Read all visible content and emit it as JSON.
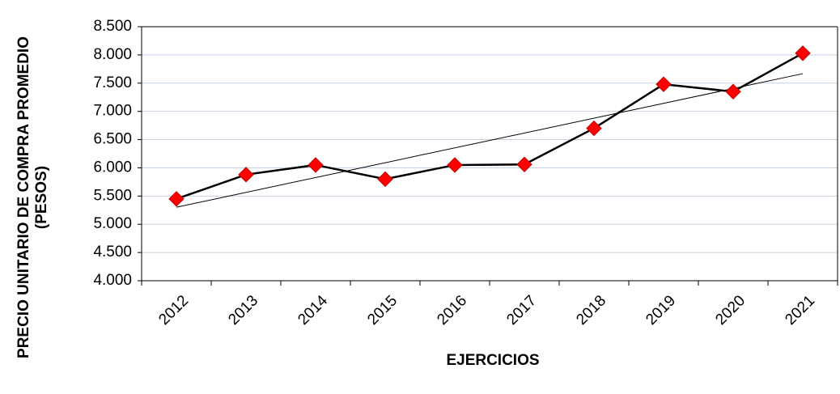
{
  "chart_data": {
    "type": "line",
    "categories": [
      "2012",
      "2013",
      "2014",
      "2015",
      "2016",
      "2017",
      "2018",
      "2019",
      "2020",
      "2021"
    ],
    "values": [
      5450,
      5880,
      6050,
      5800,
      6050,
      6060,
      6700,
      7480,
      7350,
      8030
    ],
    "color": "#000000",
    "marker_color": "#ff0000",
    "trendline": "linear",
    "x_label": "EJERCICIOS",
    "y_label": [
      "PRECIO UNITARIO DE COMPRA PROMEDIO",
      "(PESOS)"
    ],
    "ylim": [
      4000,
      8500
    ],
    "yticks": [
      {
        "value": 4000,
        "label": "4.000"
      },
      {
        "value": 4500,
        "label": "4.500"
      },
      {
        "value": 5000,
        "label": "5.000"
      },
      {
        "value": 5500,
        "label": "5.500"
      },
      {
        "value": 6000,
        "label": "6.000"
      },
      {
        "value": 6500,
        "label": "6.500"
      },
      {
        "value": 7000,
        "label": "7.000"
      },
      {
        "value": 7500,
        "label": "7.500"
      },
      {
        "value": 8000,
        "label": "8.000"
      },
      {
        "value": 8500,
        "label": "8.500"
      }
    ],
    "grid": true
  }
}
